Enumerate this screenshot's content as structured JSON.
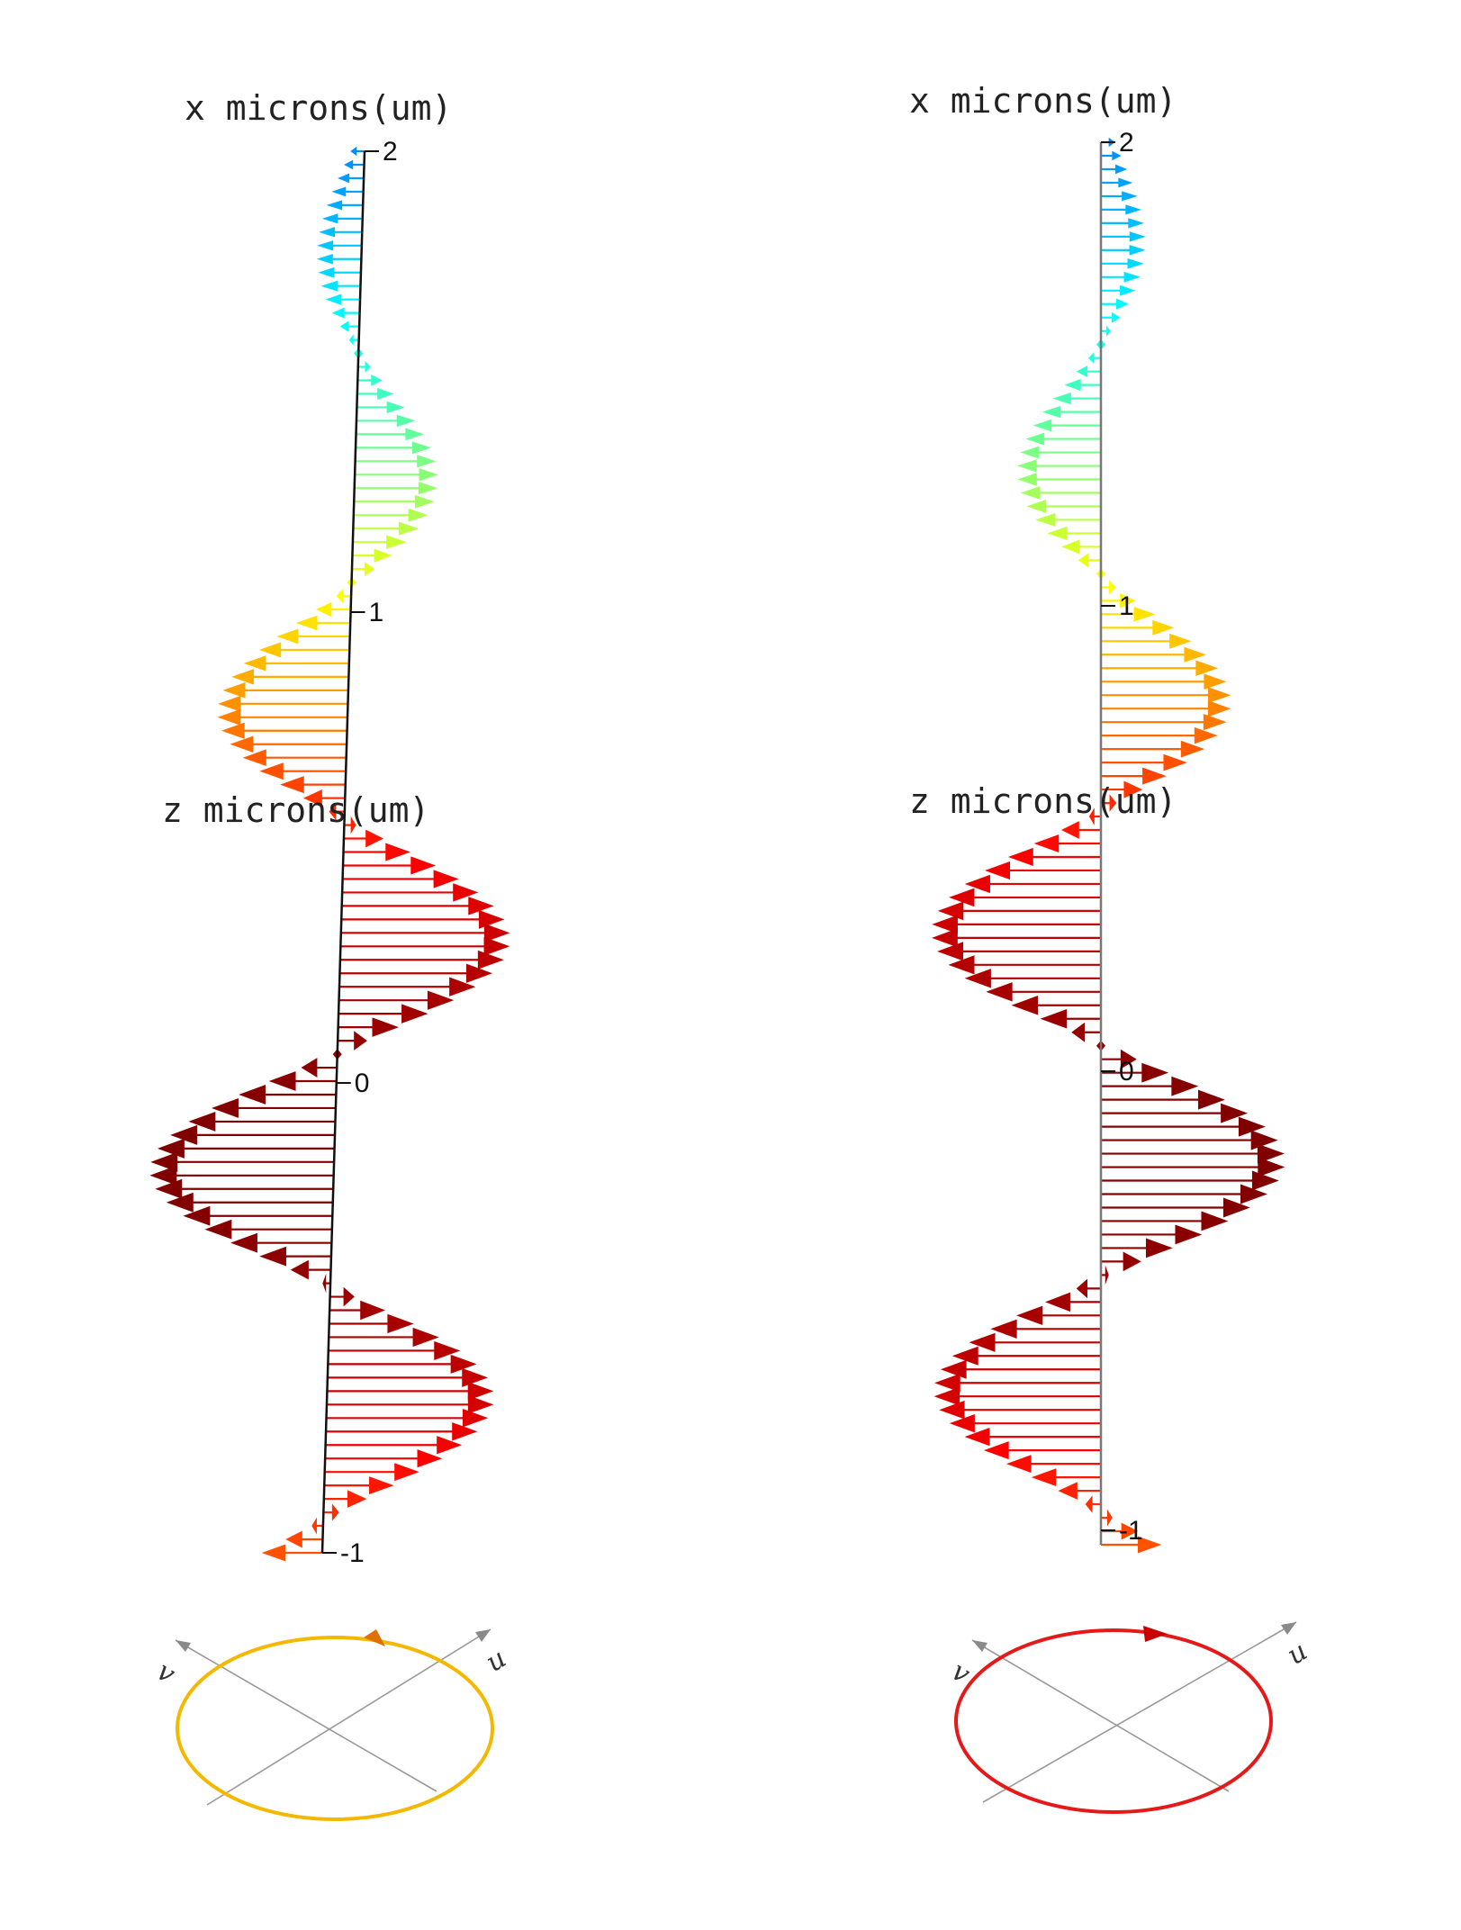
{
  "panels": [
    {
      "id": "left",
      "x_axis_label": "x microns(um)",
      "z_axis_label": "z microns(um)",
      "ticks": [
        "2",
        "1",
        "0",
        "-1"
      ],
      "wave": {
        "cycles": 3,
        "phase_deg": 180,
        "amplitude_profile": "gaussian",
        "color_scale": "jet"
      },
      "polarization": {
        "u_label": "u",
        "v_label": "v",
        "ellipse_color": "#F5B800",
        "arrow_color": "#E07000",
        "direction": "counterclockwise"
      }
    },
    {
      "id": "right",
      "x_axis_label": "x microns(um)",
      "z_axis_label": "z microns(um)",
      "ticks": [
        "2",
        "1",
        "0",
        "-1"
      ],
      "wave": {
        "cycles": 3,
        "phase_deg": 0,
        "amplitude_profile": "gaussian",
        "color_scale": "jet"
      },
      "polarization": {
        "u_label": "u",
        "v_label": "v",
        "ellipse_color": "#E41A1A",
        "arrow_color": "#C80000",
        "direction": "clockwise"
      }
    }
  ]
}
